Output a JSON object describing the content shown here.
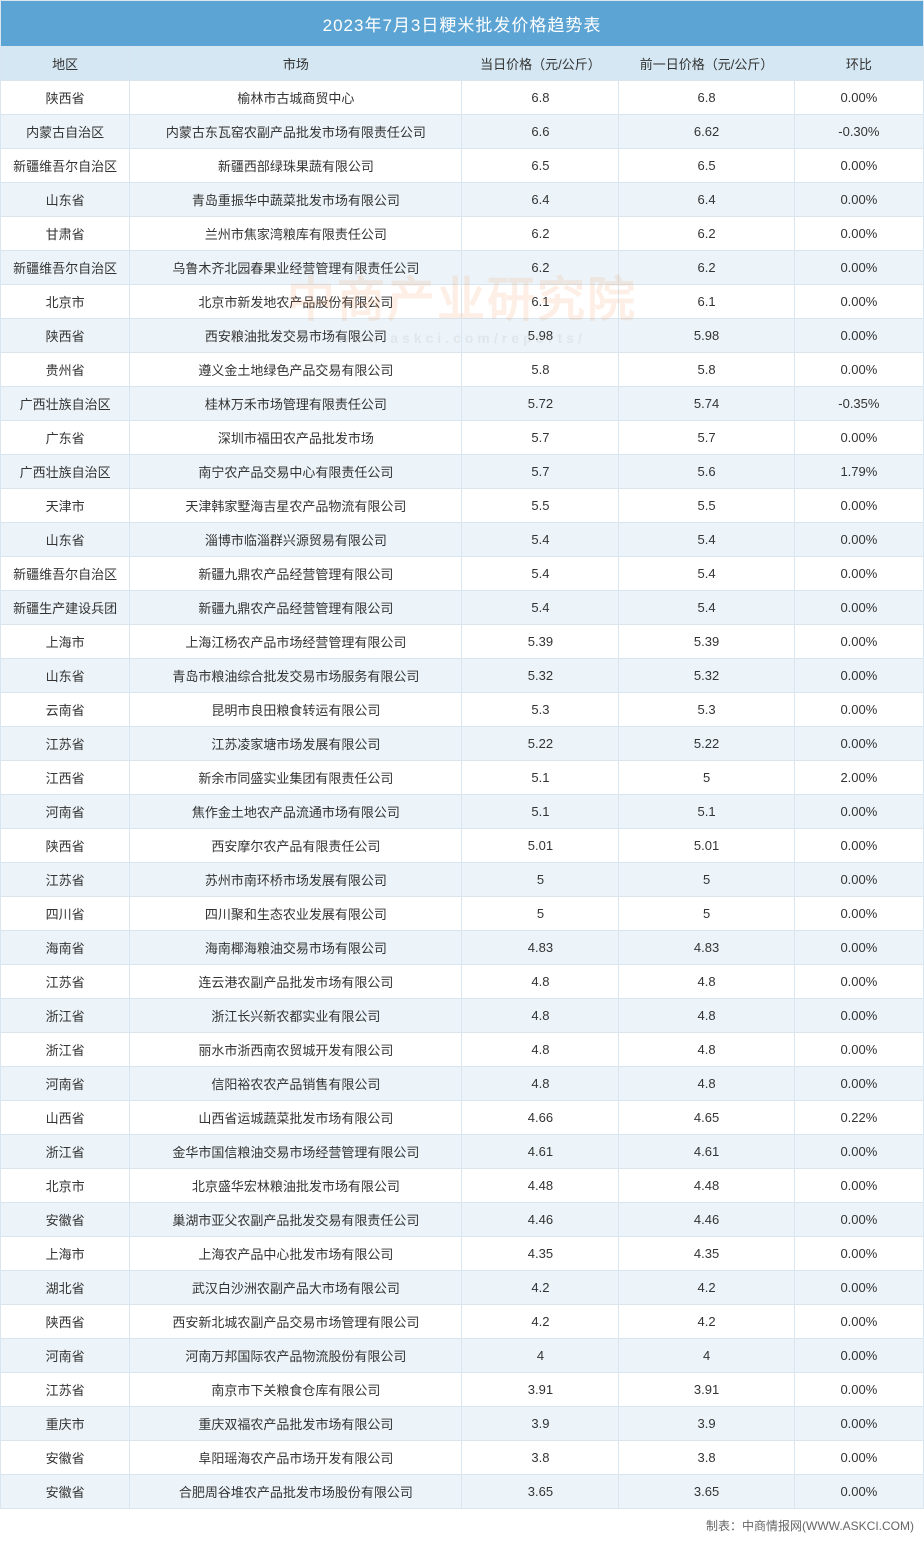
{
  "title": "2023年7月3日粳米批发价格趋势表",
  "columns": [
    "地区",
    "市场",
    "当日价格（元/公斤）",
    "前一日价格（元/公斤）",
    "环比"
  ],
  "footer": "制表：中商情报网(WWW.ASKCI.COM)",
  "watermark": {
    "main": "中商产业研究院",
    "sub": "www.askci.com/reports/"
  },
  "styling": {
    "header_bg": "#5ca4d4",
    "header_text": "#ffffff",
    "subheader_bg": "#d5e7f2",
    "row_even_bg": "#edf4f9",
    "row_odd_bg": "#ffffff",
    "border_color": "#d9e6ef",
    "font_size_title": 17,
    "font_size_cell": 13,
    "column_widths_pct": [
      14,
      36,
      17,
      19,
      14
    ]
  },
  "rows": [
    [
      "陕西省",
      "榆林市古城商贸中心",
      "6.8",
      "6.8",
      "0.00%"
    ],
    [
      "内蒙古自治区",
      "内蒙古东瓦窑农副产品批发市场有限责任公司",
      "6.6",
      "6.62",
      "-0.30%"
    ],
    [
      "新疆维吾尔自治区",
      "新疆西部绿珠果蔬有限公司",
      "6.5",
      "6.5",
      "0.00%"
    ],
    [
      "山东省",
      "青岛重振华中蔬菜批发市场有限公司",
      "6.4",
      "6.4",
      "0.00%"
    ],
    [
      "甘肃省",
      "兰州市焦家湾粮库有限责任公司",
      "6.2",
      "6.2",
      "0.00%"
    ],
    [
      "新疆维吾尔自治区",
      "乌鲁木齐北园春果业经营管理有限责任公司",
      "6.2",
      "6.2",
      "0.00%"
    ],
    [
      "北京市",
      "北京市新发地农产品股份有限公司",
      "6.1",
      "6.1",
      "0.00%"
    ],
    [
      "陕西省",
      "西安粮油批发交易市场有限公司",
      "5.98",
      "5.98",
      "0.00%"
    ],
    [
      "贵州省",
      "遵义金土地绿色产品交易有限公司",
      "5.8",
      "5.8",
      "0.00%"
    ],
    [
      "广西壮族自治区",
      "桂林万禾市场管理有限责任公司",
      "5.72",
      "5.74",
      "-0.35%"
    ],
    [
      "广东省",
      "深圳市福田农产品批发市场",
      "5.7",
      "5.7",
      "0.00%"
    ],
    [
      "广西壮族自治区",
      "南宁农产品交易中心有限责任公司",
      "5.7",
      "5.6",
      "1.79%"
    ],
    [
      "天津市",
      "天津韩家墅海吉星农产品物流有限公司",
      "5.5",
      "5.5",
      "0.00%"
    ],
    [
      "山东省",
      "淄博市临淄群兴源贸易有限公司",
      "5.4",
      "5.4",
      "0.00%"
    ],
    [
      "新疆维吾尔自治区",
      "新疆九鼎农产品经营管理有限公司",
      "5.4",
      "5.4",
      "0.00%"
    ],
    [
      "新疆生产建设兵团",
      "新疆九鼎农产品经营管理有限公司",
      "5.4",
      "5.4",
      "0.00%"
    ],
    [
      "上海市",
      "上海江杨农产品市场经营管理有限公司",
      "5.39",
      "5.39",
      "0.00%"
    ],
    [
      "山东省",
      "青岛市粮油综合批发交易市场服务有限公司",
      "5.32",
      "5.32",
      "0.00%"
    ],
    [
      "云南省",
      "昆明市良田粮食转运有限公司",
      "5.3",
      "5.3",
      "0.00%"
    ],
    [
      "江苏省",
      "江苏凌家塘市场发展有限公司",
      "5.22",
      "5.22",
      "0.00%"
    ],
    [
      "江西省",
      "新余市同盛实业集团有限责任公司",
      "5.1",
      "5",
      "2.00%"
    ],
    [
      "河南省",
      "焦作金土地农产品流通市场有限公司",
      "5.1",
      "5.1",
      "0.00%"
    ],
    [
      "陕西省",
      "西安摩尔农产品有限责任公司",
      "5.01",
      "5.01",
      "0.00%"
    ],
    [
      "江苏省",
      "苏州市南环桥市场发展有限公司",
      "5",
      "5",
      "0.00%"
    ],
    [
      "四川省",
      "四川聚和生态农业发展有限公司",
      "5",
      "5",
      "0.00%"
    ],
    [
      "海南省",
      "海南椰海粮油交易市场有限公司",
      "4.83",
      "4.83",
      "0.00%"
    ],
    [
      "江苏省",
      "连云港农副产品批发市场有限公司",
      "4.8",
      "4.8",
      "0.00%"
    ],
    [
      "浙江省",
      "浙江长兴新农都实业有限公司",
      "4.8",
      "4.8",
      "0.00%"
    ],
    [
      "浙江省",
      "丽水市浙西南农贸城开发有限公司",
      "4.8",
      "4.8",
      "0.00%"
    ],
    [
      "河南省",
      "信阳裕农农产品销售有限公司",
      "4.8",
      "4.8",
      "0.00%"
    ],
    [
      "山西省",
      "山西省运城蔬菜批发市场有限公司",
      "4.66",
      "4.65",
      "0.22%"
    ],
    [
      "浙江省",
      "金华市国信粮油交易市场经营管理有限公司",
      "4.61",
      "4.61",
      "0.00%"
    ],
    [
      "北京市",
      "北京盛华宏林粮油批发市场有限公司",
      "4.48",
      "4.48",
      "0.00%"
    ],
    [
      "安徽省",
      "巢湖市亚父农副产品批发交易有限责任公司",
      "4.46",
      "4.46",
      "0.00%"
    ],
    [
      "上海市",
      "上海农产品中心批发市场有限公司",
      "4.35",
      "4.35",
      "0.00%"
    ],
    [
      "湖北省",
      "武汉白沙洲农副产品大市场有限公司",
      "4.2",
      "4.2",
      "0.00%"
    ],
    [
      "陕西省",
      "西安新北城农副产品交易市场管理有限公司",
      "4.2",
      "4.2",
      "0.00%"
    ],
    [
      "河南省",
      "河南万邦国际农产品物流股份有限公司",
      "4",
      "4",
      "0.00%"
    ],
    [
      "江苏省",
      "南京市下关粮食仓库有限公司",
      "3.91",
      "3.91",
      "0.00%"
    ],
    [
      "重庆市",
      "重庆双福农产品批发市场有限公司",
      "3.9",
      "3.9",
      "0.00%"
    ],
    [
      "安徽省",
      "阜阳瑶海农产品市场开发有限公司",
      "3.8",
      "3.8",
      "0.00%"
    ],
    [
      "安徽省",
      "合肥周谷堆农产品批发市场股份有限公司",
      "3.65",
      "3.65",
      "0.00%"
    ]
  ]
}
